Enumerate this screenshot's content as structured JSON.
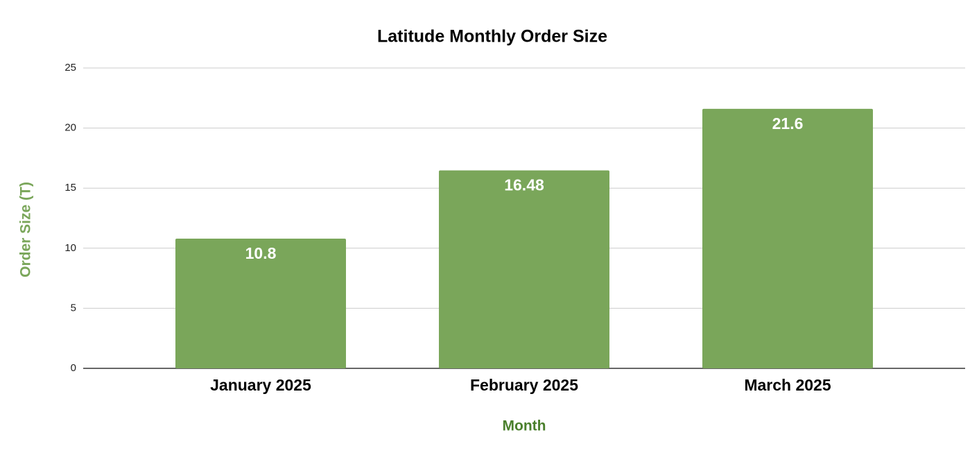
{
  "chart_data": {
    "type": "bar",
    "title": "Latitude Monthly Order Size",
    "x_label": "Month",
    "y_label": "Order Size (T)",
    "categories": [
      "January 2025",
      "February 2025",
      "March 2025"
    ],
    "values": [
      10.8,
      16.48,
      21.6
    ],
    "color": "#7aa65a",
    "ylim": [
      0,
      25
    ],
    "yticks": [
      0,
      5,
      10,
      15,
      20,
      25
    ],
    "grid": true
  }
}
